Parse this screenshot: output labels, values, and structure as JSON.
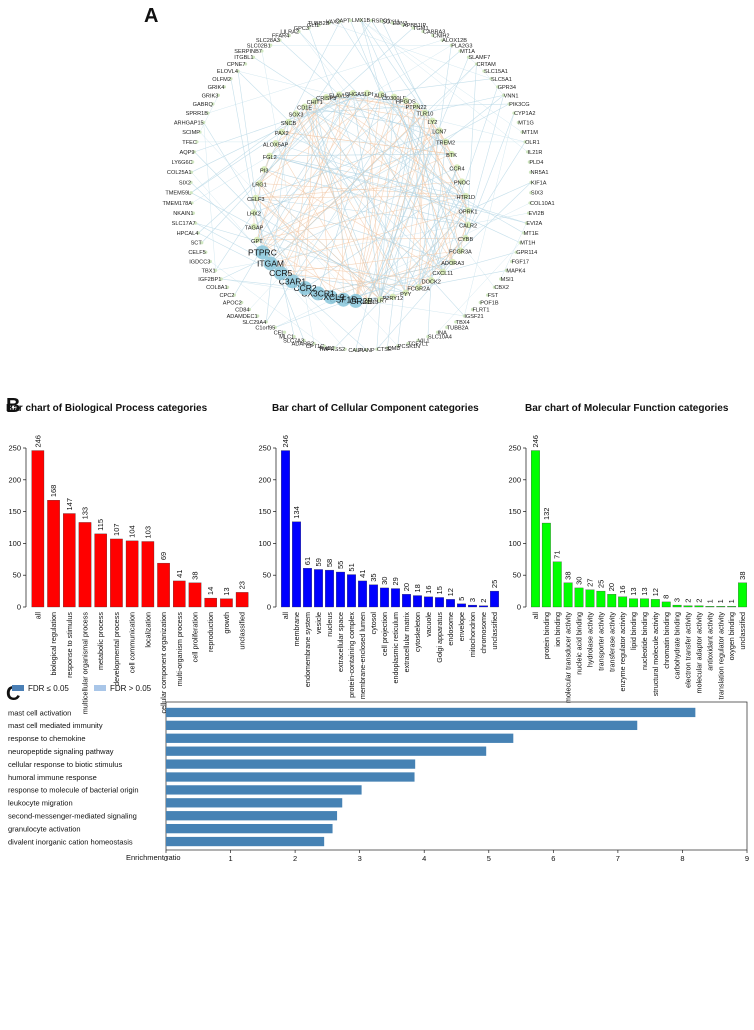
{
  "panels": {
    "a": "A",
    "b": "B",
    "c": "C"
  },
  "chart_data": [
    {
      "type": "network",
      "panel": "A",
      "outer_ring_genes": [
        "LMX1B",
        "RSPO1",
        "SOX11",
        "EDN3",
        "APBB1IP",
        "TGM1",
        "CABRA3",
        "CNIH2",
        "ALOX12B",
        "PLA2G3",
        "MT1A",
        "SLAMF7",
        "CRTAM",
        "SLC15A1",
        "SLC5A1",
        "GPR34",
        "VNN1",
        "PIK3CG",
        "CYP1A2",
        "MT1G",
        "MT1M",
        "OLR1",
        "IL21R",
        "PLD4",
        "NR5A1",
        "KIF1A",
        "SIX3",
        "COL10A1",
        "EVI2B",
        "EVI2A",
        "MT1E",
        "MT1H",
        "GPR114",
        "FGF17",
        "MAPK4",
        "MSI1",
        "CBX2",
        "FST",
        "POF1B",
        "FLRT1",
        "IGSF21",
        "TBX4",
        "TUBB2A",
        "INA",
        "SLC10A4",
        "VIL1",
        "TCF7L1",
        "PCSK1N",
        "OMD",
        "CTSE",
        "PIANP",
        "CALP",
        "TMPRSS2",
        "RND2",
        "CPT1C",
        "ADARB2",
        "SLC7A3",
        "MLC1",
        "CEL",
        "C1orf95",
        "SLC29A4",
        "ADAMDEC1",
        "CD84",
        "APOC2",
        "CPC2",
        "COL8A1",
        "IGF2BP1",
        "TBX1",
        "IGDCC3",
        "CELF5",
        "SCT",
        "HPCAL4",
        "SLC17A7",
        "NKAIN1",
        "TMEM178A",
        "TMEM59L",
        "SIX2",
        "COL25A1",
        "LY6G6C",
        "AQP9",
        "TFEC",
        "SCIMP",
        "ARHGAP15",
        "SPRR1B",
        "GABRQ",
        "GRIK3",
        "GRIK4",
        "OLFM2",
        "ELOVL4",
        "CPNE7",
        "ITGBL1",
        "SERPINB7",
        "SLC02B1",
        "SLC28A3",
        "FFAR4",
        "LILRA2",
        "GPC3",
        "GLI1",
        "TUBB2B",
        "VAX2",
        "CAPT"
      ],
      "inner_ring_genes": [
        "ALPL",
        "CD300LF",
        "HPGDS",
        "PTPN22",
        "TLR10",
        "LY2",
        "LCN7",
        "TREM2",
        "BTK",
        "CCR4",
        "PNOC",
        "HTR1D",
        "OPRK1",
        "CALR2",
        "CYBB",
        "FCGR3A",
        "ADORA3",
        "CXCL11",
        "DOCK2",
        "FCGR2A",
        "PYY",
        "P2RY12",
        "TLR7",
        "P2RY13",
        "FCGR2B",
        "CSF1R",
        "CXCL9",
        "CX3CR1",
        "CCR2",
        "C3AR1",
        "CCR5",
        "ITGAM",
        "PTPRC",
        "GPT",
        "TAGAP",
        "LHX2",
        "CELF3",
        "LRG1",
        "PI3",
        "FGL2",
        "ALOX5AP",
        "PAX2",
        "SNCB",
        "SOX3",
        "CD1E",
        "CHIT1",
        "CRISP3",
        "ELAVL3",
        "CHGA",
        "SLPI"
      ]
    },
    {
      "type": "bar",
      "title": "Bar chart of Biological Process categories",
      "color": "#ff0000",
      "categories": [
        "all",
        "biological regulation",
        "response to stimulus",
        "multicellular organismal process",
        "metabolic process",
        "developmental process",
        "cell communication",
        "localization",
        "cellular component organization",
        "multi-organism process",
        "cell proliferation",
        "reproduction",
        "growth",
        "unclassified"
      ],
      "values": [
        246,
        168,
        147,
        133,
        115,
        107,
        104,
        103,
        69,
        41,
        38,
        14,
        13,
        23
      ],
      "ylim": [
        0,
        250
      ],
      "yticks": [
        "0",
        "50",
        "100",
        "150",
        "200",
        "250"
      ]
    },
    {
      "type": "bar",
      "title": "Bar chart of Cellular Component categories",
      "color": "#0000ff",
      "categories": [
        "all",
        "membrane",
        "endomembrane system",
        "vesicle",
        "nucleus",
        "extracellular space",
        "protein-containing complex",
        "membrane-enclosed lumen",
        "cytosol",
        "cell projection",
        "endoplasmic reticulum",
        "extracellular matrix",
        "cytoskeleton",
        "vacuole",
        "Golgi apparatus",
        "endosome",
        "envelope",
        "mitochondrion",
        "chromosome",
        "unclassified"
      ],
      "values": [
        246,
        134,
        61,
        59,
        58,
        55,
        51,
        41,
        35,
        30,
        29,
        20,
        18,
        16,
        15,
        12,
        5,
        3,
        2,
        25
      ],
      "ylim": [
        0,
        250
      ],
      "yticks": [
        "0",
        "50",
        "100",
        "150",
        "200",
        "250"
      ]
    },
    {
      "type": "bar",
      "title": "Bar chart of Molecular Function categories",
      "color": "#00ff00",
      "categories": [
        "all",
        "protein binding",
        "ion binding",
        "molecular transducer activity",
        "nucleic acid binding",
        "hydrolase activity",
        "transporter activity",
        "transferase activity",
        "enzyme regulator activity",
        "lipid binding",
        "nucleotide binding",
        "structural molecule activity",
        "chromatin binding",
        "carbohydrate binding",
        "electron transfer activity",
        "molecular adaptor activity",
        "antioxidant activity",
        "translation regulator activity",
        "oxygen binding",
        "unclassified"
      ],
      "values": [
        246,
        132,
        71,
        38,
        30,
        27,
        25,
        20,
        16,
        13,
        13,
        12,
        8,
        3,
        2,
        2,
        1,
        1,
        1,
        38
      ],
      "ylim": [
        0,
        250
      ],
      "yticks": [
        "0",
        "50",
        "100",
        "150",
        "200",
        "250"
      ]
    },
    {
      "type": "bar",
      "orientation": "horizontal",
      "panel": "C",
      "color": "#4682b4",
      "legend": [
        {
          "label": "FDR ≤ 0.05",
          "color": "#4a7fb5"
        },
        {
          "label": "FDR > 0.05",
          "color": "#a9c6e8"
        }
      ],
      "categories": [
        "mast cell activation",
        "mast cell mediated immunity",
        "response to chemokine",
        "neuropeptide signaling pathway",
        "cellular response to biotic stimulus",
        "humoral immune response",
        "response to molecule of bacterial origin",
        "leukocyte migration",
        "second-messenger-mediated signaling",
        "granulocyte activation",
        "divalent inorganic cation homeostasis"
      ],
      "values": [
        8.2,
        7.3,
        5.38,
        4.96,
        3.86,
        3.85,
        3.03,
        2.73,
        2.65,
        2.58,
        2.45
      ],
      "xlim": [
        0,
        9
      ],
      "xticks": [
        "0",
        "1",
        "2",
        "3",
        "4",
        "5",
        "6",
        "7",
        "8",
        "9"
      ],
      "xlabel": "Enrichment ratio"
    }
  ]
}
